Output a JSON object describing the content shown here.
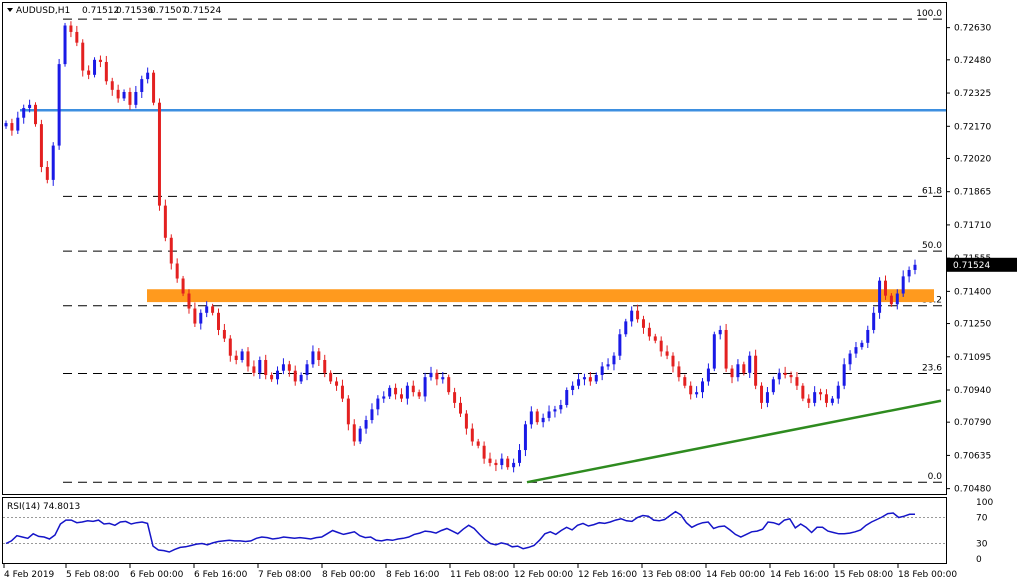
{
  "header": {
    "symbol": "AUDUSD,H1",
    "open": "0.71512",
    "high": "0.71536",
    "low": "0.71507",
    "close": "0.71524"
  },
  "rsi": {
    "label": "RSI(14) 74.8013",
    "levels": [
      "100",
      "70",
      "30",
      "0"
    ],
    "values": [
      30,
      34,
      42,
      40,
      38,
      45,
      41,
      40,
      37,
      43,
      60,
      66,
      66,
      62,
      63,
      65,
      64,
      66,
      60,
      61,
      58,
      63,
      64,
      60,
      62,
      63,
      61,
      26,
      20,
      19,
      17,
      21,
      24,
      25,
      27,
      29,
      30,
      28,
      31,
      33,
      34,
      35,
      34,
      34,
      33,
      34,
      38,
      40,
      39,
      37,
      38,
      40,
      39,
      38,
      39,
      38,
      37,
      39,
      40,
      45,
      50,
      47,
      44,
      46,
      48,
      42,
      39,
      40,
      35,
      34,
      36,
      35,
      37,
      38,
      40,
      44,
      46,
      49,
      48,
      46,
      50,
      53,
      49,
      45,
      52,
      58,
      53,
      44,
      36,
      30,
      28,
      31,
      29,
      25,
      26,
      22,
      24,
      27,
      35,
      45,
      48,
      44,
      50,
      55,
      51,
      58,
      61,
      57,
      59,
      62,
      61,
      63,
      66,
      68,
      65,
      64,
      70,
      73,
      72,
      66,
      65,
      67,
      73,
      79,
      74,
      62,
      55,
      59,
      62,
      63,
      53,
      56,
      57,
      51,
      44,
      40,
      44,
      48,
      49,
      52,
      63,
      62,
      59,
      66,
      68,
      54,
      60,
      55,
      47,
      55,
      55,
      49,
      47,
      45,
      45,
      46,
      48,
      51,
      58,
      63,
      67,
      71,
      76,
      77,
      70,
      72,
      75,
      75
    ]
  },
  "chart_data": {
    "type": "candlestick",
    "y_ticks": [
      "0.72630",
      "0.72480",
      "0.72325",
      "0.72170",
      "0.72020",
      "0.71865",
      "0.71710",
      "0.71555",
      "0.71400",
      "0.71250",
      "0.71095",
      "0.70940",
      "0.70790",
      "0.70635",
      "0.70480"
    ],
    "ylim": [
      0.70455,
      0.72745
    ],
    "current_price_label": "0.71524",
    "current_price": 0.71524,
    "x_labels": [
      "4 Feb 2019",
      "5 Feb 08:00",
      "6 Feb 00:00",
      "6 Feb 16:00",
      "7 Feb 08:00",
      "8 Feb 00:00",
      "8 Feb 16:00",
      "11 Feb 08:00",
      "12 Feb 00:00",
      "12 Feb 16:00",
      "13 Feb 08:00",
      "14 Feb 00:00",
      "14 Feb 16:00",
      "15 Feb 08:00",
      "18 Feb 00:00"
    ],
    "fibonacci": [
      {
        "label": "100.0",
        "price": 0.7267
      },
      {
        "label": "61.8",
        "price": 0.71843
      },
      {
        "label": "50.0",
        "price": 0.71588
      },
      {
        "label": "38.2",
        "price": 0.71333
      },
      {
        "label": "23.6",
        "price": 0.71017
      },
      {
        "label": "0.0",
        "price": 0.7051
      }
    ],
    "resistance_line": {
      "price": 0.72245,
      "color": "#3d8fe0"
    },
    "support_zone": {
      "from": 0.7135,
      "to": 0.7141,
      "color": "#ff9a1e"
    },
    "trendline": {
      "from": 0.7051,
      "to": 0.7089,
      "color": "#2e8b1f"
    },
    "bull_color": "#1a1ae6",
    "bear_color": "#e32020",
    "closes": [
      0.72185,
      0.7215,
      0.7221,
      0.72255,
      0.7227,
      0.7218,
      0.7198,
      0.7192,
      0.7208,
      0.7246,
      0.7264,
      0.7261,
      0.7256,
      0.7243,
      0.7241,
      0.7248,
      0.7247,
      0.7238,
      0.7234,
      0.723,
      0.7233,
      0.7227,
      0.7233,
      0.7239,
      0.7242,
      0.7228,
      0.718,
      0.7165,
      0.7153,
      0.7146,
      0.7139,
      0.7132,
      0.7125,
      0.713,
      0.7133,
      0.713,
      0.7122,
      0.7118,
      0.711,
      0.7108,
      0.7112,
      0.7105,
      0.7102,
      0.7108,
      0.7101,
      0.7099,
      0.7103,
      0.7106,
      0.7103,
      0.7098,
      0.7101,
      0.7106,
      0.7112,
      0.7108,
      0.7102,
      0.7098,
      0.7096,
      0.709,
      0.7078,
      0.707,
      0.7076,
      0.708,
      0.7085,
      0.709,
      0.7091,
      0.7095,
      0.7092,
      0.709,
      0.7096,
      0.7093,
      0.7091,
      0.71,
      0.7102,
      0.7099,
      0.71,
      0.7093,
      0.7088,
      0.7083,
      0.7076,
      0.707,
      0.7068,
      0.7062,
      0.706,
      0.7059,
      0.7062,
      0.7058,
      0.706,
      0.7066,
      0.7078,
      0.7084,
      0.7079,
      0.7081,
      0.7084,
      0.7085,
      0.7087,
      0.7094,
      0.7096,
      0.7099,
      0.71,
      0.7098,
      0.7101,
      0.7105,
      0.7106,
      0.711,
      0.712,
      0.7126,
      0.7131,
      0.7127,
      0.7123,
      0.7119,
      0.7117,
      0.7112,
      0.711,
      0.7105,
      0.71,
      0.7096,
      0.7092,
      0.7093,
      0.7098,
      0.7104,
      0.712,
      0.7122,
      0.7104,
      0.71,
      0.7106,
      0.7102,
      0.711,
      0.7096,
      0.7088,
      0.7093,
      0.7099,
      0.7102,
      0.7101,
      0.71,
      0.7096,
      0.709,
      0.7088,
      0.7093,
      0.7092,
      0.7088,
      0.709,
      0.7096,
      0.7106,
      0.7111,
      0.7114,
      0.7116,
      0.7122,
      0.713,
      0.7145,
      0.7138,
      0.7134,
      0.7139,
      0.7147,
      0.715,
      0.71524
    ]
  }
}
